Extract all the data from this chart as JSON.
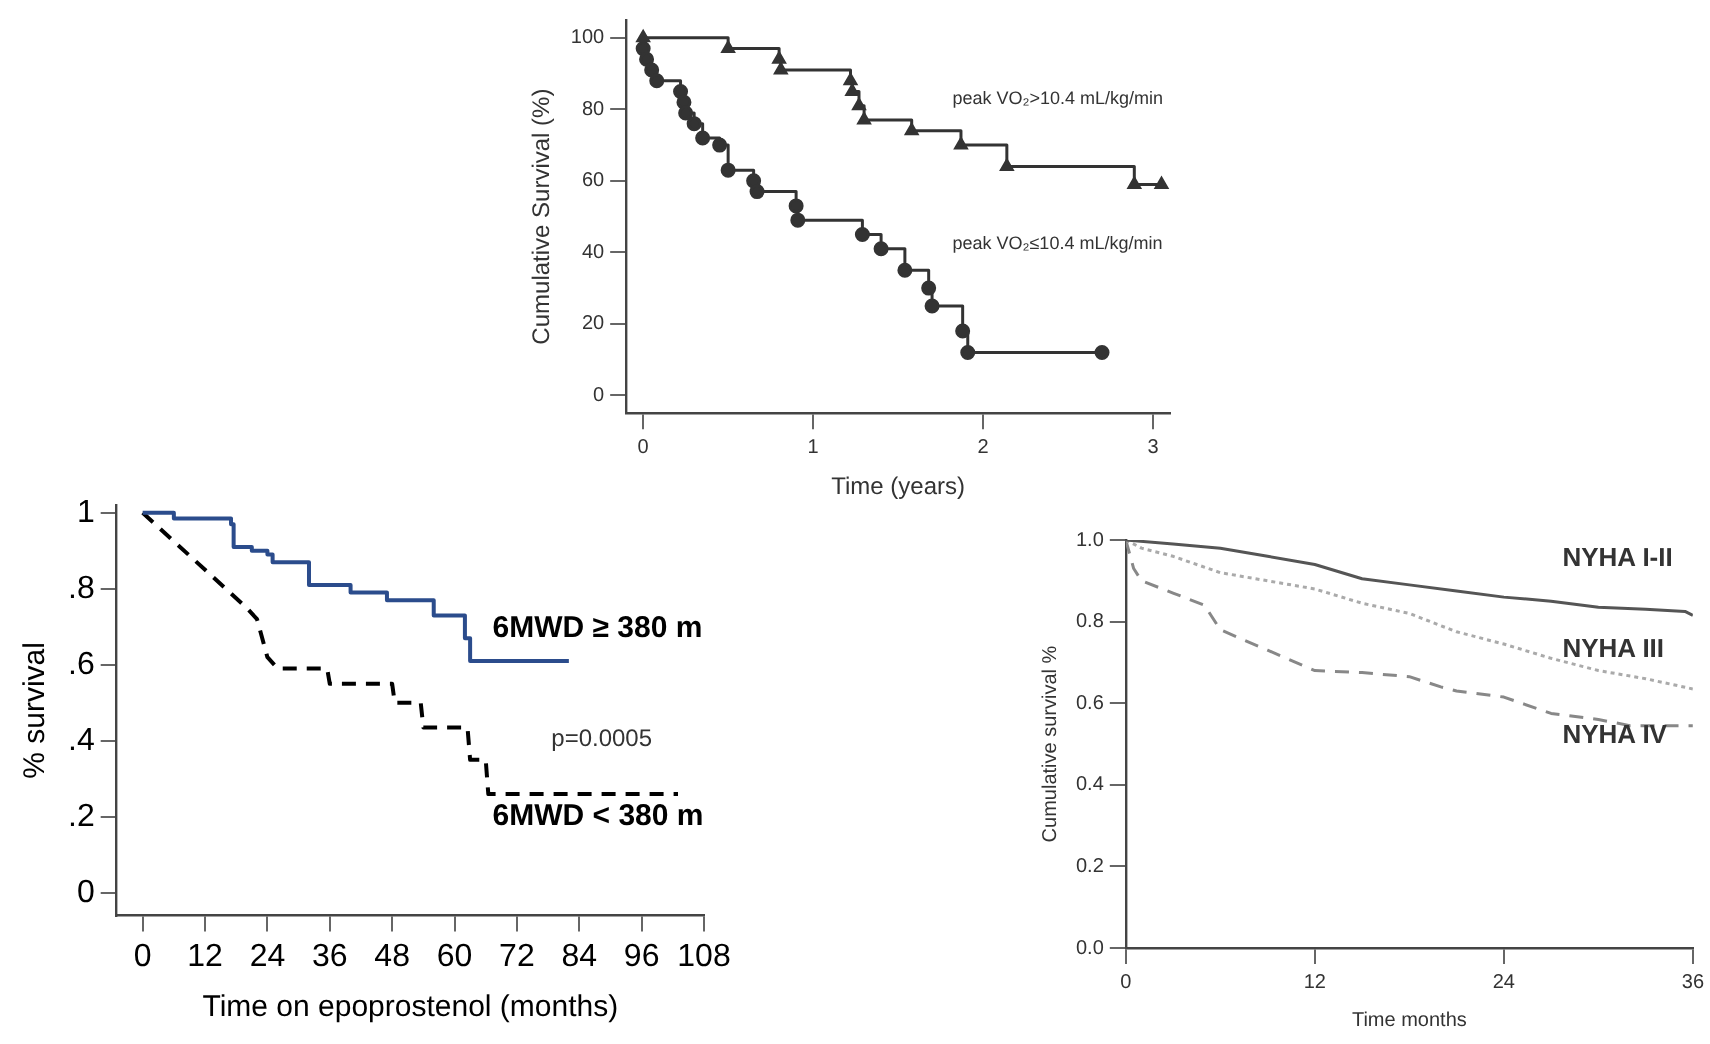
{
  "chart_data": [
    {
      "type": "step",
      "xlabel": "Time (years)",
      "ylabel": "Cumulative Survival (%)",
      "xlim": [
        -0.1,
        3.1
      ],
      "ylim": [
        -5,
        105
      ],
      "xticks": [
        0,
        1,
        2,
        3
      ],
      "yticks": [
        0,
        20,
        40,
        60,
        80,
        100
      ],
      "grid": false,
      "legend": false,
      "series": [
        {
          "name": "peak VO₂>10.4 mL/kg/min",
          "color": "#333333",
          "marker": "triangle",
          "x": [
            0,
            0.5,
            0.8,
            0.81,
            1.22,
            1.23,
            1.27,
            1.3,
            1.58,
            1.87,
            2.14,
            2.89,
            3.05
          ],
          "values": [
            100,
            97,
            94,
            91,
            88,
            85,
            81,
            77,
            74,
            70,
            64,
            59,
            59
          ]
        },
        {
          "name": "peak VO₂≤10.4 mL/kg/min",
          "color": "#333333",
          "marker": "circle",
          "x": [
            0,
            0.02,
            0.05,
            0.08,
            0.22,
            0.24,
            0.25,
            0.3,
            0.35,
            0.45,
            0.5,
            0.65,
            0.67,
            0.9,
            0.91,
            1.29,
            1.4,
            1.54,
            1.68,
            1.7,
            1.88,
            1.91,
            2.7
          ],
          "values": [
            97,
            94,
            91,
            88,
            85,
            82,
            79,
            76,
            72,
            70,
            63,
            60,
            57,
            53,
            49,
            45,
            41,
            35,
            30,
            25,
            18,
            12,
            12
          ]
        }
      ]
    },
    {
      "type": "line",
      "xlabel": "Time on epoprostenol (months)",
      "ylabel": "% survival",
      "xlim": [
        -5,
        108
      ],
      "ylim": [
        -0.06,
        1.02
      ],
      "xticks": [
        0,
        12,
        24,
        36,
        48,
        60,
        72,
        {
          "value": 84,
          "label": "84"
        },
        96,
        108
      ],
      "yticks": [
        {
          "value": 0,
          "label": "0"
        },
        {
          "value": 0.2,
          "label": ".2"
        },
        {
          "value": 0.4,
          "label": ".4"
        },
        {
          "value": 0.6,
          "label": ".6"
        },
        {
          "value": 0.8,
          "label": ".8"
        },
        {
          "value": 1,
          "label": "1"
        }
      ],
      "grid": false,
      "legend": false,
      "annotations": [
        "p=0.0005"
      ],
      "series": [
        {
          "name": "6MWD ≥ 380 m",
          "type": "step",
          "color": "#2b4c8c",
          "line_style": "solid",
          "x": [
            0,
            6,
            17,
            17.5,
            21,
            24,
            25,
            32,
            40,
            47,
            56,
            62,
            63,
            82
          ],
          "values": [
            1,
            0.985,
            0.97,
            0.91,
            0.9,
            0.89,
            0.87,
            0.81,
            0.79,
            0.77,
            0.73,
            0.67,
            0.61,
            0.61
          ]
        },
        {
          "name": "6MWD < 380 m",
          "type": "line",
          "color": "#000000",
          "line_style": "dashed",
          "x": [
            0,
            20,
            22,
            24,
            26,
            35.5,
            36,
            48,
            48.5,
            53.5,
            54,
            62.5,
            63,
            66,
            66.5,
            103
          ],
          "values": [
            1,
            0.75,
            0.72,
            0.62,
            0.59,
            0.59,
            0.55,
            0.55,
            0.5,
            0.5,
            0.435,
            0.435,
            0.35,
            0.35,
            0.26,
            0.26
          ]
        }
      ]
    },
    {
      "type": "line",
      "xlabel": "Time months",
      "ylabel": "Cumulative survival %",
      "xlim": [
        0,
        36
      ],
      "ylim": [
        0,
        1
      ],
      "xticks": [
        0,
        12,
        24,
        36
      ],
      "yticks": [
        {
          "value": 0,
          "label": "0.0"
        },
        {
          "value": 0.2,
          "label": "0.2"
        },
        {
          "value": 0.4,
          "label": "0.4"
        },
        {
          "value": 0.6,
          "label": "0.6"
        },
        {
          "value": 0.8,
          "label": "0.8"
        },
        {
          "value": 1,
          "label": "1.0"
        }
      ],
      "grid": false,
      "legend": false,
      "series": [
        {
          "name": "NYHA I-II",
          "color": "#555555",
          "line_style": "solid",
          "x": [
            0,
            3,
            6,
            9,
            12,
            15,
            18,
            21,
            24,
            27,
            30,
            33,
            35.5,
            36
          ],
          "values": [
            1,
            0.99,
            0.98,
            0.96,
            0.94,
            0.905,
            0.89,
            0.875,
            0.86,
            0.85,
            0.835,
            0.83,
            0.825,
            0.815
          ]
        },
        {
          "name": "NYHA III",
          "color": "#aaaaaa",
          "line_style": "dotted",
          "x": [
            0,
            1,
            3,
            6,
            9,
            12,
            15,
            18,
            21,
            24,
            27,
            30,
            33,
            36
          ],
          "values": [
            1,
            0.98,
            0.96,
            0.92,
            0.9,
            0.88,
            0.845,
            0.82,
            0.775,
            0.745,
            0.71,
            0.68,
            0.66,
            0.635
          ]
        },
        {
          "name": "NYHA IV",
          "color": "#888888",
          "line_style": "dashed",
          "x": [
            0,
            0.5,
            1,
            3,
            5,
            6,
            9,
            12,
            15,
            18,
            20,
            21,
            24,
            27,
            30,
            32,
            36
          ],
          "values": [
            1,
            0.93,
            0.9,
            0.87,
            0.84,
            0.78,
            0.73,
            0.68,
            0.675,
            0.665,
            0.64,
            0.63,
            0.615,
            0.575,
            0.56,
            0.545,
            0.545
          ]
        }
      ]
    }
  ]
}
